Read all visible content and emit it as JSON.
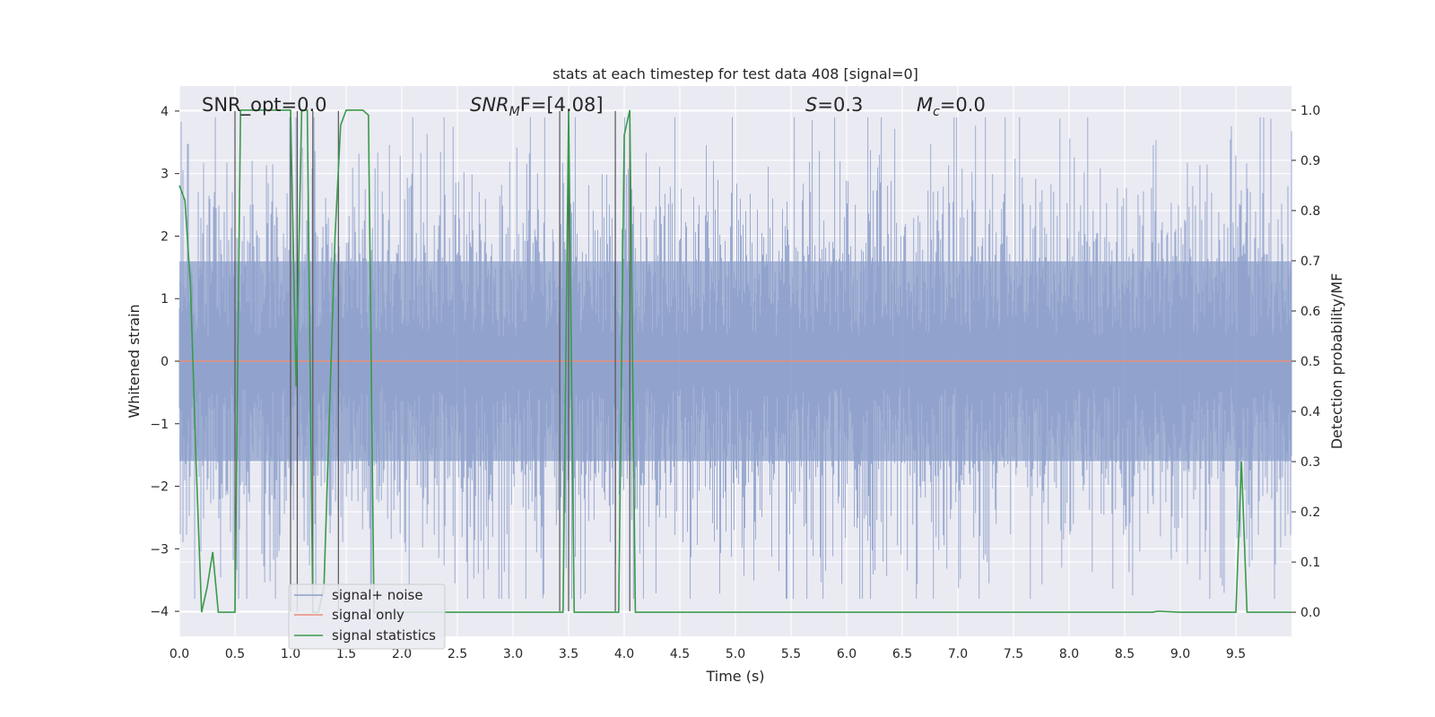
{
  "chart_data": {
    "type": "line",
    "title": "stats at each timestep for test data 408 [signal=0]",
    "xlabel": "Time (s)",
    "ylabel": "Whitened strain",
    "ylabel_right": "Detection probability/MF",
    "xlim": [
      0.0,
      10.0
    ],
    "ylim": [
      -4.4,
      4.4
    ],
    "ylim_right": [
      -0.048,
      1.048
    ],
    "xticks": [
      "0.0",
      "0.5",
      "1.0",
      "1.5",
      "2.0",
      "2.5",
      "3.0",
      "3.5",
      "4.0",
      "4.5",
      "5.0",
      "5.5",
      "6.0",
      "6.5",
      "7.0",
      "7.5",
      "8.0",
      "8.5",
      "9.0",
      "9.5"
    ],
    "yticks": [
      "4",
      "3",
      "2",
      "1",
      "0",
      "−1",
      "−2",
      "−3",
      "−4"
    ],
    "yticks_right": [
      "1.0",
      "0.9",
      "0.8",
      "0.7",
      "0.6",
      "0.5",
      "0.4",
      "0.3",
      "0.2",
      "0.1",
      "0.0"
    ],
    "grid": true,
    "legend_position": "lower-left",
    "annotations": {
      "snr_opt": "SNR_opt=0.0",
      "snr_mf_name": "SNR",
      "snr_mf_sub": "M",
      "snr_mf_rest": "F=[4.08]",
      "s_name": "S",
      "s_rest": "=0.3",
      "mc_name": "M",
      "mc_sub": "c",
      "mc_rest": "=0.0"
    },
    "series": [
      {
        "name": "signal+ noise",
        "color": "#8da0cb",
        "description_type": "noise",
        "amplitude_std": 0.95,
        "peak_range": [
          -3.8,
          3.9
        ]
      },
      {
        "name": "signal only",
        "color": "#e8907a",
        "x": [
          0.0,
          10.0
        ],
        "y": [
          0.0,
          0.0
        ]
      },
      {
        "name": "signal statistics",
        "color": "#3a9a4a",
        "axis": "right",
        "x": [
          0.0,
          0.05,
          0.1,
          0.15,
          0.2,
          0.25,
          0.3,
          0.35,
          0.4,
          0.45,
          0.5,
          0.55,
          0.6,
          0.65,
          0.7,
          0.75,
          0.8,
          0.85,
          0.9,
          0.95,
          1.0,
          1.05,
          1.1,
          1.15,
          1.2,
          1.25,
          1.3,
          1.35,
          1.4,
          1.45,
          1.5,
          1.55,
          1.6,
          1.65,
          1.7,
          1.75,
          1.8,
          1.85,
          1.9,
          1.95,
          2.0,
          2.5,
          3.0,
          3.4,
          3.45,
          3.5,
          3.55,
          3.6,
          3.9,
          3.95,
          4.0,
          4.05,
          4.1,
          4.15,
          5.0,
          6.0,
          7.0,
          8.0,
          8.75,
          8.8,
          9.0,
          9.45,
          9.5,
          9.55,
          9.6,
          9.65,
          9.7,
          9.8,
          9.9,
          10.0
        ],
        "y": [
          0.85,
          0.82,
          0.65,
          0.3,
          0.0,
          0.05,
          0.12,
          0.0,
          0.0,
          0.0,
          0.0,
          1.0,
          1.0,
          1.0,
          1.0,
          1.0,
          1.0,
          1.0,
          1.0,
          1.0,
          1.0,
          0.45,
          1.0,
          1.0,
          0.0,
          0.0,
          0.05,
          0.4,
          0.75,
          0.97,
          1.0,
          1.0,
          1.0,
          1.0,
          0.99,
          0.0,
          0.0,
          0.0,
          0.0,
          0.0,
          0.0,
          0.0,
          0.0,
          0.0,
          0.0,
          1.0,
          0.0,
          0.0,
          0.0,
          0.0,
          0.95,
          1.0,
          0.0,
          0.0,
          0.0,
          0.0,
          0.0,
          0.0,
          0.0,
          0.002,
          0.0,
          0.0,
          0.0,
          0.3,
          0.0,
          0.0,
          0.0,
          0.0,
          0.0,
          0.0
        ]
      }
    ],
    "vertical_markers": {
      "color": "#555555",
      "x": [
        0.5,
        1.0,
        1.06,
        1.2,
        1.43,
        3.42,
        3.5,
        3.92,
        4.05
      ]
    }
  }
}
